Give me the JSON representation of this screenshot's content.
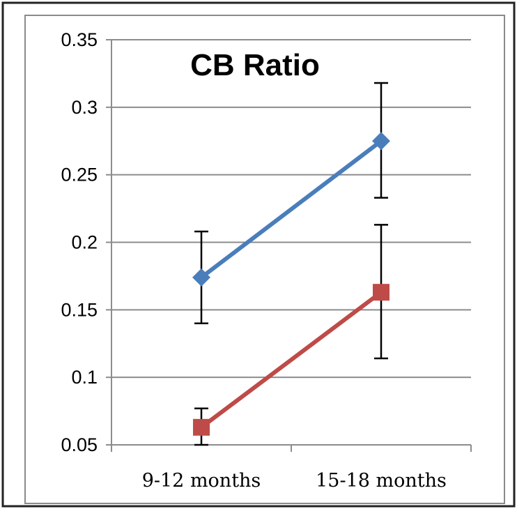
{
  "chart_data": {
    "type": "line",
    "title": "CB Ratio",
    "xlabel": "",
    "ylabel": "",
    "categories": [
      "9-12 months",
      "15-18 months"
    ],
    "ylim": [
      0.05,
      0.35
    ],
    "yticks": [
      "0.35",
      "0.3",
      "0.25",
      "0.2",
      "0.15",
      "0.1",
      "0.05"
    ],
    "ytick_values": [
      0.35,
      0.3,
      0.25,
      0.2,
      0.15,
      0.1,
      0.05
    ],
    "grid": true,
    "legend": "none",
    "series": [
      {
        "color": "#4a7ebb",
        "marker": "diamond",
        "values": [
          0.174,
          0.275
        ],
        "error_low": [
          0.14,
          0.233
        ],
        "error_high": [
          0.208,
          0.318
        ]
      },
      {
        "color": "#be4b48",
        "marker": "square",
        "values": [
          0.063,
          0.163
        ],
        "error_low": [
          0.05,
          0.114
        ],
        "error_high": [
          0.077,
          0.213
        ]
      }
    ]
  }
}
